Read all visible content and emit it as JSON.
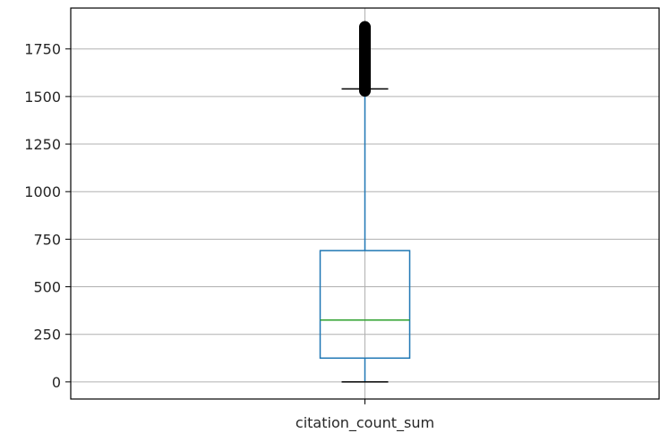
{
  "chart_data": {
    "type": "box",
    "categories": [
      "citation_count_sum"
    ],
    "y_ticks": [
      0,
      250,
      500,
      750,
      1000,
      1250,
      1500,
      1750
    ],
    "ylim": [
      -90,
      1965
    ],
    "grid": true,
    "boxes": [
      {
        "label": "citation_count_sum",
        "whisker_low": 0,
        "q1": 125,
        "median": 325,
        "q3": 690,
        "whisker_high": 1540,
        "outliers_min": 1530,
        "outliers_max": 1870
      }
    ],
    "colors": {
      "box": "#1f77b4",
      "median": "#2ca02c",
      "caps": "#000000",
      "outliers": "#000000",
      "grid": "#b0b0b0",
      "axes": "#000000"
    }
  }
}
